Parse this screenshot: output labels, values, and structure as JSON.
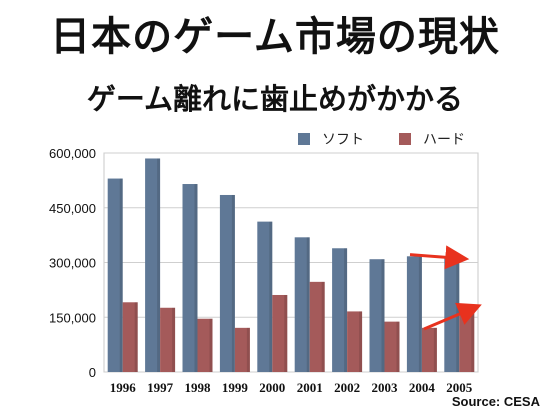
{
  "slide": {
    "title": "日本のゲーム市場の現状",
    "subtitle": "ゲーム離れに歯止めがかかる",
    "source": "Source: CESA"
  },
  "chart_data": {
    "type": "bar",
    "categories": [
      "1996",
      "1997",
      "1998",
      "1999",
      "2000",
      "2001",
      "2002",
      "2003",
      "2004",
      "2005"
    ],
    "series": [
      {
        "name": "ソフト",
        "values": [
          530000,
          585000,
          515000,
          485000,
          412000,
          369000,
          339000,
          309000,
          317000,
          316000
        ],
        "color": "#5f7896"
      },
      {
        "name": "ハード",
        "values": [
          191000,
          176000,
          146000,
          121000,
          211000,
          247000,
          166000,
          138000,
          121000,
          184000
        ],
        "color": "#a45a5a"
      }
    ],
    "ylim": [
      0,
      600000
    ],
    "yticks": [
      "0",
      "150,000",
      "300,000",
      "450,000",
      "600,000"
    ],
    "ytick_values": [
      0,
      150000,
      300000,
      450000,
      600000
    ],
    "grid": true,
    "legend_position": "top-right",
    "annotations": [
      {
        "type": "arrow",
        "color": "#e8321e",
        "target": "2005 ソフト"
      },
      {
        "type": "arrow",
        "color": "#e8321e",
        "target": "2005 ハード"
      }
    ]
  }
}
